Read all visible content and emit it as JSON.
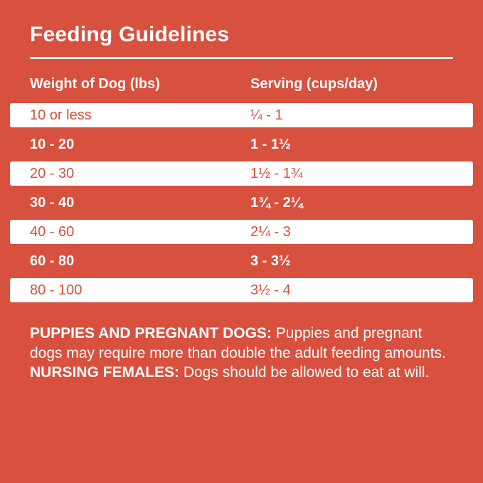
{
  "page": {
    "title": "Feeding Guidelines",
    "background_color": "#D8503E",
    "accent_color": "#FFFFFF"
  },
  "table": {
    "headers": {
      "weight": "Weight of Dog (lbs)",
      "serving": "Serving (cups/day)"
    },
    "rows": [
      {
        "weight": "10 or less",
        "serving": "¼ - 1"
      },
      {
        "weight": "10 - 20",
        "serving": "1 - 1½"
      },
      {
        "weight": "20 - 30",
        "serving": "1½ - 1¾"
      },
      {
        "weight": "30 - 40",
        "serving": "1¾ - 2¼"
      },
      {
        "weight": "40 - 60",
        "serving": "2¼ - 3"
      },
      {
        "weight": "60 - 80",
        "serving": "3 - 3½"
      },
      {
        "weight": "80 - 100",
        "serving": "3½ - 4"
      }
    ]
  },
  "footer": {
    "segments": [
      {
        "text": "PUPPIES AND PREGNANT DOGS: ",
        "bold": true
      },
      {
        "text": "Puppies and pregnant dogs may require more than double the adult feeding amounts. ",
        "bold": false
      },
      {
        "text": "NURSING FEMALES: ",
        "bold": true
      },
      {
        "text": "Dogs should be allowed to eat at will.",
        "bold": false
      }
    ]
  }
}
